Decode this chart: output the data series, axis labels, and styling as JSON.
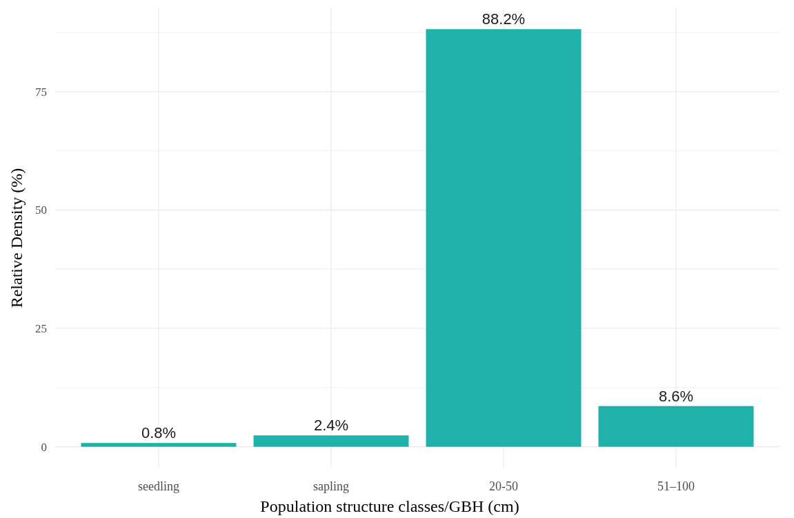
{
  "chart_data": {
    "type": "bar",
    "xlabel": "Population structure classes/GBH (cm)",
    "ylabel": "Relative Density (%)",
    "categories": [
      "seedling",
      "sapling",
      "20-50",
      "51–100"
    ],
    "values": [
      0.8,
      2.4,
      88.2,
      8.6
    ],
    "value_labels": [
      "0.8%",
      "2.4%",
      "88.2%",
      "8.6%"
    ],
    "color": "#20b2aa",
    "ylim": [
      -4.41,
      92.61
    ],
    "yticks": [
      0,
      {
        "value": 12.5,
        "label": null
      },
      25,
      {
        "value": 37.5,
        "label": null
      },
      50,
      {
        "value": 62.5,
        "label": null
      },
      75,
      {
        "value": 87.5,
        "label": null
      }
    ],
    "grid": true
  }
}
